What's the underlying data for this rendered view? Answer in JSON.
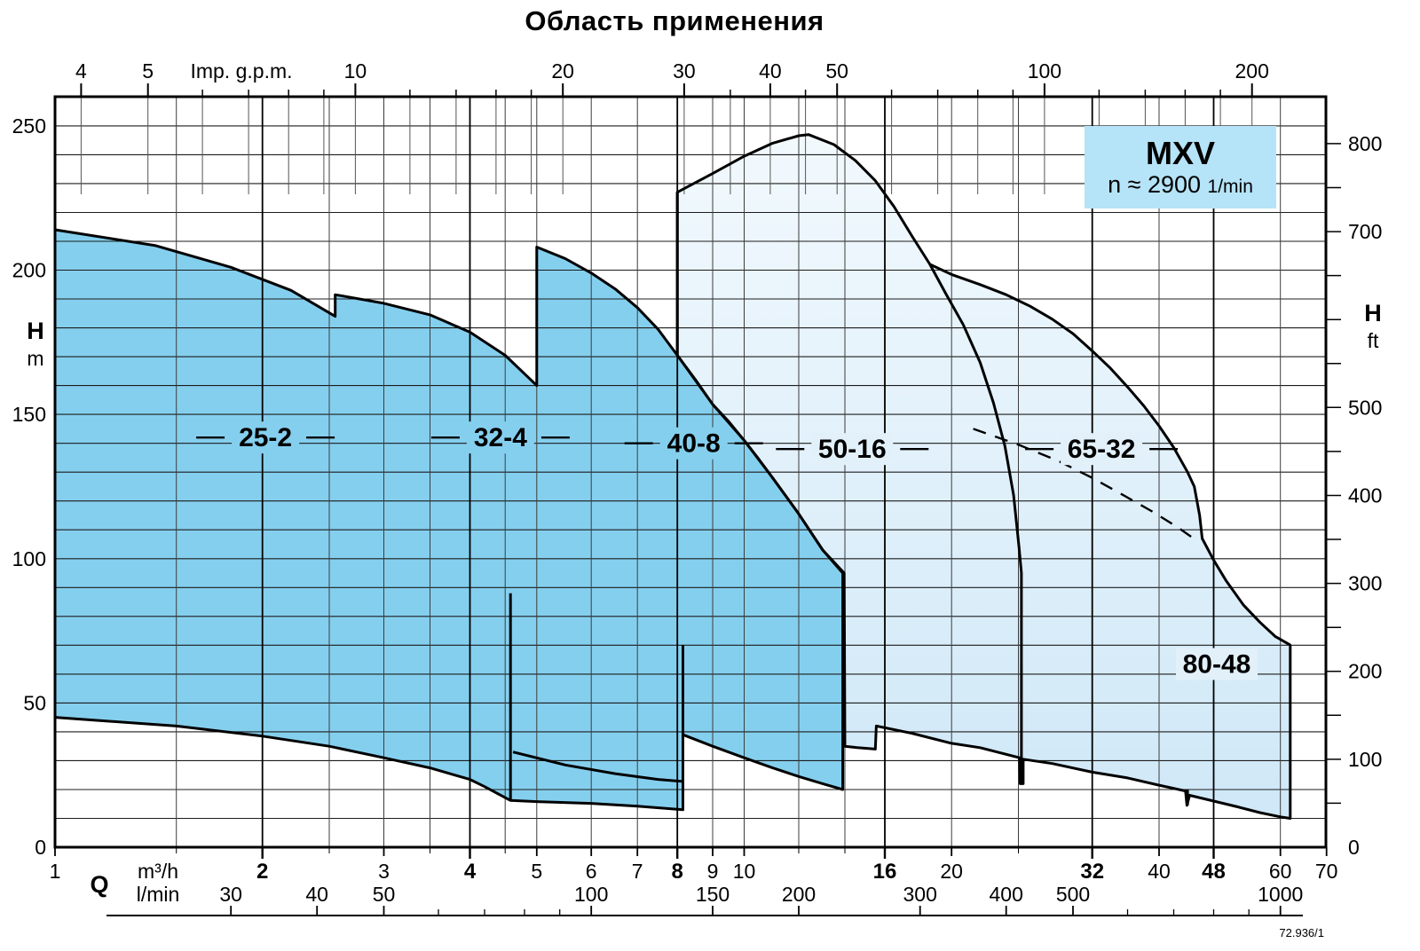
{
  "chart_data": {
    "type": "area",
    "title": "Область применения",
    "legend": {
      "model": "MXV",
      "speed_prefix": "n ≈",
      "speed_value": "2900",
      "speed_unit": "1/min"
    },
    "drawing_number": "72.936/1",
    "axes": {
      "top": {
        "title": "Imp. g.p.m.",
        "labeled_ticks": [
          4,
          5,
          10,
          20,
          30,
          40,
          50,
          100,
          200
        ],
        "minor_ticks": [
          6,
          7,
          8,
          9,
          12,
          14,
          16,
          18,
          35,
          45,
          60,
          70,
          80,
          90,
          120,
          140,
          160,
          180
        ],
        "gpm_per_m3h": 3.666
      },
      "left": {
        "title": "H",
        "unit": "m",
        "labeled_ticks": [
          0,
          50,
          100,
          150,
          200,
          250
        ],
        "grid_step_m": 10,
        "range_m": [
          0,
          260
        ]
      },
      "right": {
        "title": "H",
        "unit": "ft",
        "labeled_ticks": [
          0,
          100,
          200,
          300,
          400,
          500,
          700,
          800
        ],
        "minor_step_ft": 50,
        "range_ft": [
          0,
          850
        ],
        "m_per_ft": 0.3048
      },
      "bottom": {
        "title": "Q",
        "unit_primary": "m³/h",
        "labeled_ticks_m3h": [
          1,
          2,
          3,
          4,
          5,
          6,
          7,
          8,
          9,
          10,
          16,
          20,
          32,
          40,
          48,
          60,
          70
        ],
        "bold_ticks_m3h": [
          2,
          4,
          8,
          16,
          32,
          48
        ],
        "range_m3h": [
          1,
          70
        ],
        "unit_secondary": "l/min",
        "labeled_ticks_lmin": [
          30,
          40,
          50,
          100,
          150,
          200,
          300,
          400,
          500,
          1000
        ],
        "minor_ticks_lmin": [
          60,
          70,
          80,
          90,
          600,
          700,
          800,
          900
        ],
        "m3h_per_lmin": 0.06
      }
    },
    "grid": {
      "vertical_m3h_thin": [
        1.5,
        2.5,
        3,
        3.5,
        4.5,
        5,
        6,
        7,
        9,
        10,
        12,
        14,
        20,
        25,
        40,
        60
      ],
      "vertical_m3h_bold": [
        2,
        4,
        8,
        16,
        32,
        48
      ],
      "horizontal_step_m": 10
    },
    "colors": {
      "region_dark": "#85cfee",
      "region_light_top": "#f2f9fd",
      "region_light_bottom": "#cfe8f7",
      "legend_bg": "#b5e3f7",
      "line": "#000000",
      "grid": "#3c3c3c"
    },
    "regions": [
      {
        "name": "25-2",
        "label": "25-2",
        "label_q": 2.02,
        "label_h": 142,
        "dashes": true,
        "shade": "dark",
        "q_range": [
          1,
          4.5
        ],
        "h_range": [
          16,
          214
        ]
      },
      {
        "name": "32-4",
        "label": "32-4",
        "label_q": 4.43,
        "label_h": 142,
        "dashes": true,
        "shade": "dark",
        "q_range": [
          2.5,
          8
        ],
        "h_range": [
          13,
          191
        ]
      },
      {
        "name": "40-8",
        "label": "40-8",
        "label_q": 8.45,
        "label_h": 140,
        "dashes": true,
        "shade": "dark",
        "q_range": [
          5,
          13.9
        ],
        "h_range": [
          20,
          208
        ]
      },
      {
        "name": "50-16",
        "label": "50-16",
        "label_q": 14.35,
        "label_h": 138,
        "dashes": true,
        "shade": "light",
        "q_range": [
          8,
          25.2
        ],
        "h_range": [
          22,
          247
        ]
      },
      {
        "name": "65-32",
        "label": "65-32",
        "label_q": 33,
        "label_h": 138,
        "dashes": true,
        "shade": "light",
        "q_range": [
          15.5,
          46
        ],
        "h_range": [
          14.5,
          202
        ]
      },
      {
        "name": "80-48",
        "label": "80-48",
        "label_q": 48.5,
        "label_h": 63.5,
        "dashes": false,
        "shade": "light",
        "q_range": [
          44,
          62
        ],
        "h_range": [
          10,
          107
        ]
      }
    ],
    "shapes": {
      "dark_union": [
        [
          1,
          214
        ],
        [
          1.4,
          208.5
        ],
        [
          1.8,
          201
        ],
        [
          2.2,
          193
        ],
        [
          2.55,
          184
        ],
        [
          2.55,
          191.5
        ],
        [
          3,
          188.5
        ],
        [
          3.5,
          184.5
        ],
        [
          4,
          178.5
        ],
        [
          4.5,
          170.5
        ],
        [
          5,
          160
        ],
        [
          5,
          208
        ],
        [
          5.5,
          204
        ],
        [
          6,
          199
        ],
        [
          6.5,
          193.5
        ],
        [
          7,
          187
        ],
        [
          7.5,
          179.5
        ],
        [
          8,
          170.5
        ],
        [
          8.5,
          162
        ],
        [
          9,
          153.5
        ],
        [
          9.5,
          147.5
        ],
        [
          10,
          141
        ],
        [
          10.5,
          134.5
        ],
        [
          11,
          128
        ],
        [
          12,
          115.5
        ],
        [
          13,
          103
        ],
        [
          13.9,
          95
        ],
        [
          13.9,
          20
        ],
        [
          13,
          22
        ],
        [
          12,
          24.5
        ],
        [
          11,
          27.5
        ],
        [
          10,
          31
        ],
        [
          9,
          35
        ],
        [
          8.15,
          39
        ],
        [
          8.15,
          13
        ],
        [
          7,
          14.2
        ],
        [
          6,
          15.2
        ],
        [
          5,
          15.8
        ],
        [
          4.58,
          16.2
        ],
        [
          4.2,
          21
        ],
        [
          4,
          23.5
        ],
        [
          3.5,
          27.5
        ],
        [
          3,
          31
        ],
        [
          2.5,
          35
        ],
        [
          2,
          38.5
        ],
        [
          1.5,
          42
        ],
        [
          1,
          45
        ]
      ],
      "light_union": [
        [
          8,
          227
        ],
        [
          9,
          233.5
        ],
        [
          10,
          239.5
        ],
        [
          11,
          244
        ],
        [
          12,
          246.6
        ],
        [
          12.4,
          247
        ],
        [
          13.5,
          243.5
        ],
        [
          14.5,
          238
        ],
        [
          15.5,
          231
        ],
        [
          16.5,
          222
        ],
        [
          17.5,
          212
        ],
        [
          18.6,
          202
        ],
        [
          20,
          198.5
        ],
        [
          22,
          195
        ],
        [
          24,
          191.5
        ],
        [
          26,
          187.5
        ],
        [
          28,
          183
        ],
        [
          30,
          178
        ],
        [
          32,
          172
        ],
        [
          34,
          166
        ],
        [
          36,
          159.5
        ],
        [
          38,
          153
        ],
        [
          40,
          146
        ],
        [
          42,
          138.5
        ],
        [
          44,
          130
        ],
        [
          45,
          125
        ],
        [
          45.8,
          115
        ],
        [
          46.2,
          107
        ],
        [
          48,
          99.5
        ],
        [
          50,
          92.5
        ],
        [
          53,
          84
        ],
        [
          56,
          78
        ],
        [
          59,
          73
        ],
        [
          61.8,
          70.3
        ],
        [
          62,
          70
        ],
        [
          62,
          10
        ],
        [
          60,
          10.5
        ],
        [
          56,
          12
        ],
        [
          52,
          14
        ],
        [
          48,
          16
        ],
        [
          44.3,
          18
        ],
        [
          43.9,
          14.5
        ],
        [
          43.7,
          19.5
        ],
        [
          40,
          21.5
        ],
        [
          36,
          24
        ],
        [
          32,
          26
        ],
        [
          28,
          29
        ],
        [
          25.4,
          30.5
        ],
        [
          25.4,
          22
        ],
        [
          25.15,
          22
        ],
        [
          25.1,
          31
        ],
        [
          22,
          34.5
        ],
        [
          20,
          36
        ],
        [
          17.5,
          39.5
        ],
        [
          15.55,
          42
        ],
        [
          15.5,
          34
        ],
        [
          14.6,
          34.5
        ],
        [
          14,
          35
        ],
        [
          13.97,
          95
        ],
        [
          13,
          103
        ],
        [
          12,
          115.5
        ],
        [
          11,
          128
        ],
        [
          10,
          141
        ],
        [
          9,
          153.5
        ],
        [
          8,
          170.5
        ]
      ],
      "interior_lines": [
        {
          "name": "edge-25-2-right",
          "pts": [
            [
              4.58,
              88
            ],
            [
              4.58,
              16.2
            ]
          ]
        },
        {
          "name": "min-curve-32-4",
          "pts": [
            [
              4.62,
              33
            ],
            [
              5.5,
              28.5
            ],
            [
              6.5,
              25.5
            ],
            [
              7.5,
              23.5
            ],
            [
              8.12,
              22.8
            ]
          ]
        },
        {
          "name": "edge-32-4-right",
          "pts": [
            [
              8.15,
              70
            ],
            [
              8.15,
              13
            ]
          ]
        },
        {
          "name": "edge-50-16-left",
          "pts": [
            [
              8,
              227
            ],
            [
              8,
              170.5
            ]
          ]
        },
        {
          "name": "edge-50-16-right",
          "pts": [
            [
              18.6,
              202
            ],
            [
              19.6,
              192
            ],
            [
              20.8,
              181
            ],
            [
              22,
              168
            ],
            [
              23,
              154
            ],
            [
              23.9,
              139
            ],
            [
              24.6,
              122
            ],
            [
              25.05,
              104
            ],
            [
              25.25,
              95
            ],
            [
              25.25,
              22
            ]
          ]
        },
        {
          "name": "edge-80-48-left",
          "pts": [
            [
              44,
              20
            ],
            [
              44,
              14.5
            ]
          ]
        }
      ],
      "dashed_line": [
        [
          21.5,
          145
        ],
        [
          25,
          139.5
        ],
        [
          28.5,
          134
        ],
        [
          32,
          128
        ],
        [
          35.5,
          122
        ],
        [
          39,
          116.5
        ],
        [
          42.5,
          111
        ],
        [
          45.2,
          106.5
        ]
      ]
    }
  }
}
